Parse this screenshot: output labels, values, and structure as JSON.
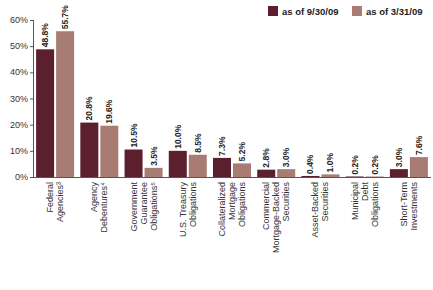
{
  "chart_data": {
    "type": "bar",
    "categories": [
      "Federal Agencies³",
      "Agency Debentures⁴",
      "Government Guarantee Obligations⁵",
      "U.S. Treasury Obligations",
      "Collateralized Mortgage Obligations",
      "Commercial Mortgage-Backed Securities",
      "Asset-Backed Securities",
      "Municipal Debt Obligations",
      "Short-Term Investments"
    ],
    "series": [
      {
        "name": "as of 9/30/09",
        "color": "#5c1f2d",
        "values": [
          48.8,
          20.8,
          10.5,
          10.0,
          7.3,
          2.8,
          0.4,
          0.2,
          3.0
        ],
        "value_labels": [
          "48.8%",
          "20.8%",
          "10.5%",
          "10.0%",
          "7.3%",
          "2.8%",
          "0.4%",
          "0.2%",
          "3.0%"
        ]
      },
      {
        "name": "as of 3/31/09",
        "color": "#a87c72",
        "values": [
          55.7,
          19.6,
          3.5,
          8.5,
          5.2,
          3.0,
          1.0,
          0.2,
          7.6
        ],
        "value_labels": [
          "55.7%",
          "19.6%",
          "3.5%",
          "8.5%",
          "5.2%",
          "3.0%",
          "1.0%",
          "0.2%",
          "7.6%"
        ]
      }
    ],
    "ylim": [
      0,
      60
    ],
    "yticks": [
      {
        "value": 0,
        "label": "0%"
      },
      {
        "value": 10,
        "label": "10%"
      },
      {
        "value": 20,
        "label": "20%"
      },
      {
        "value": 30,
        "label": "30%"
      },
      {
        "value": 40,
        "label": "40%"
      },
      {
        "value": 50,
        "label": "50%"
      },
      {
        "value": 60,
        "label": "60%"
      }
    ],
    "grid": false,
    "legend": "top-right",
    "data_labels": true
  }
}
